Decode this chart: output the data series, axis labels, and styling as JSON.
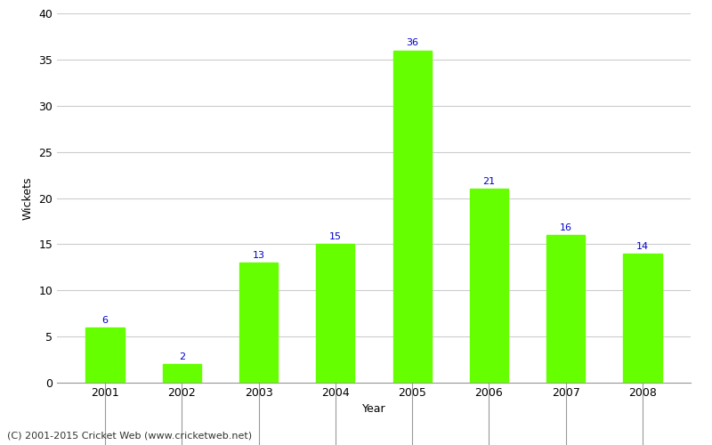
{
  "years": [
    "2001",
    "2002",
    "2003",
    "2004",
    "2005",
    "2006",
    "2007",
    "2008"
  ],
  "values": [
    6,
    2,
    13,
    15,
    36,
    21,
    16,
    14
  ],
  "bar_color": "#66ff00",
  "label_color": "#0000cc",
  "xlabel": "Year",
  "ylabel": "Wickets",
  "ylim": [
    0,
    40
  ],
  "yticks": [
    0,
    5,
    10,
    15,
    20,
    25,
    30,
    35,
    40
  ],
  "background_color": "#ffffff",
  "grid_color": "#cccccc",
  "footer": "(C) 2001-2015 Cricket Web (www.cricketweb.net)",
  "label_fontsize": 8,
  "axis_label_fontsize": 9,
  "tick_fontsize": 9,
  "footer_fontsize": 8,
  "bar_width": 0.5
}
